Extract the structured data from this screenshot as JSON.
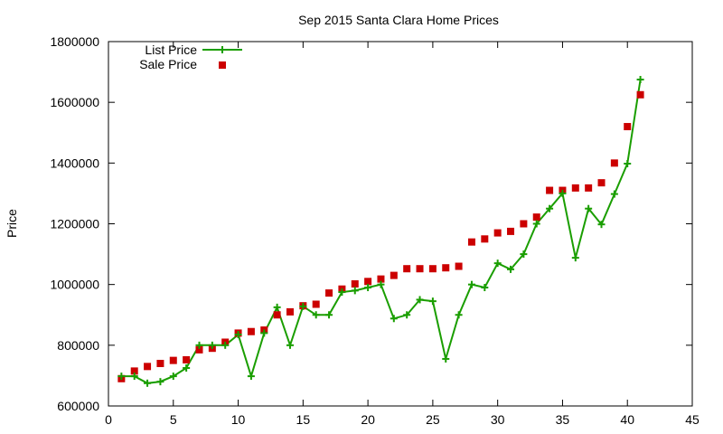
{
  "chart_data": {
    "type": "line",
    "title": "Sep 2015 Santa Clara Home Prices",
    "xlabel": "",
    "ylabel": "Price",
    "xlim": [
      0,
      45
    ],
    "ylim": [
      600000,
      1800000
    ],
    "xticks": [
      0,
      5,
      10,
      15,
      20,
      25,
      30,
      35,
      40,
      45
    ],
    "yticks": [
      600000,
      800000,
      1000000,
      1200000,
      1400000,
      1600000,
      1800000
    ],
    "grid": false,
    "legend_position": "top-left",
    "x": [
      1,
      2,
      3,
      4,
      5,
      6,
      7,
      8,
      9,
      10,
      11,
      12,
      13,
      14,
      15,
      16,
      17,
      18,
      19,
      20,
      21,
      22,
      23,
      24,
      25,
      26,
      27,
      28,
      29,
      30,
      31,
      32,
      33,
      34,
      35,
      36,
      37,
      38,
      39,
      40,
      41
    ],
    "series": [
      {
        "name": "List Price",
        "style": "line-points",
        "color": "#1a9e00",
        "values": [
          698000,
          698000,
          675000,
          680000,
          698000,
          725000,
          800000,
          800000,
          800000,
          835000,
          698000,
          840000,
          925000,
          800000,
          928000,
          900000,
          900000,
          975000,
          980000,
          990000,
          1000000,
          888000,
          900000,
          950000,
          945000,
          755000,
          900000,
          1000000,
          990000,
          1070000,
          1050000,
          1100000,
          1200000,
          1250000,
          1300000,
          1088000,
          1250000,
          1198000,
          1298000,
          1398000,
          1675000
        ]
      },
      {
        "name": "Sale Price",
        "style": "points",
        "color": "#cc0000",
        "values": [
          690000,
          715000,
          730000,
          740000,
          750000,
          752000,
          785000,
          790000,
          810000,
          840000,
          845000,
          850000,
          900000,
          910000,
          930000,
          935000,
          972000,
          985000,
          1002000,
          1010000,
          1018000,
          1030000,
          1052000,
          1052000,
          1052000,
          1055000,
          1060000,
          1140000,
          1150000,
          1170000,
          1175000,
          1200000,
          1222000,
          1310000,
          1310000,
          1318000,
          1318000,
          1335000,
          1400000,
          1520000,
          1625000
        ]
      }
    ]
  }
}
